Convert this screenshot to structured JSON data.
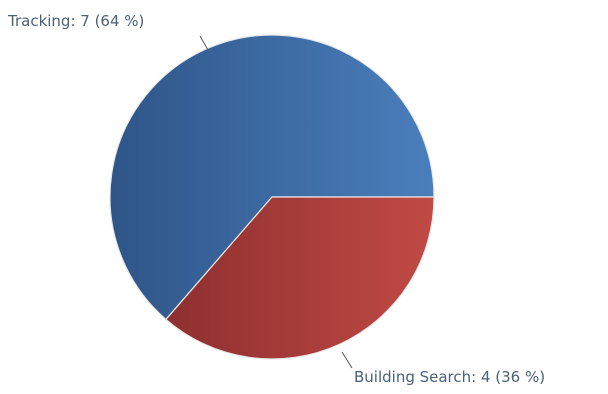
{
  "chart_data": {
    "type": "pie",
    "title": "",
    "slices": [
      {
        "label": "Tracking",
        "value": 7,
        "percent": 64,
        "display": "Tracking: 7 (64 %)",
        "color": "#3f6ea8"
      },
      {
        "label": "Building Search",
        "value": 4,
        "percent": 36,
        "display": "Building Search: 4 (36 %)",
        "color": "#aa3a3a"
      }
    ],
    "label_color": "#4a6177"
  }
}
